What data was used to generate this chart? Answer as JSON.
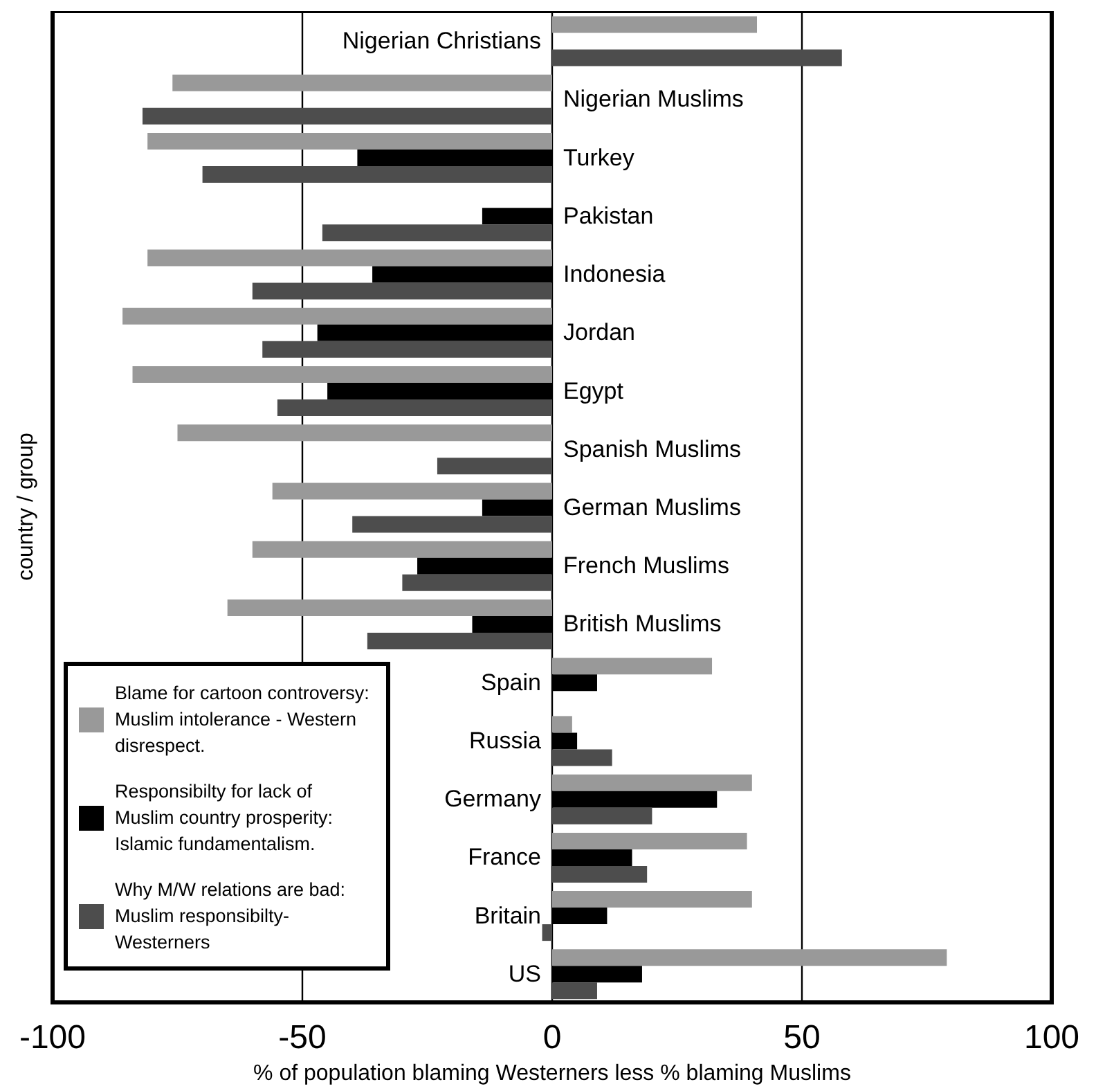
{
  "chart_data": {
    "type": "bar",
    "orientation": "horizontal",
    "ylabel": "country / group",
    "xlabel": "% of population blaming Westerners less % blaming Muslims",
    "categories": [
      "Nigerian Christians",
      "Nigerian Muslims",
      "Turkey",
      "Pakistan",
      "Indonesia",
      "Jordan",
      "Egypt",
      "Spanish Muslims",
      "German Muslims",
      "French Muslims",
      "British Muslims",
      "Spain",
      "Russia",
      "Germany",
      "France",
      "Britain",
      "US"
    ],
    "series": [
      {
        "name": "Blame for cartoon controversy: Muslim intolerance - Western disrespect.",
        "color": "#999999",
        "values": [
          41,
          -76,
          -81,
          null,
          -81,
          -86,
          -84,
          -75,
          -56,
          -60,
          -65,
          32,
          4,
          40,
          39,
          40,
          79
        ]
      },
      {
        "name": "Responsibilty for lack of Muslim country prosperity: Islamic fundamentalism.",
        "color": "#000000",
        "values": [
          null,
          null,
          -39,
          -14,
          -36,
          -47,
          -45,
          null,
          -14,
          -27,
          -16,
          9,
          5,
          33,
          16,
          11,
          18
        ]
      },
      {
        "name": "Why M/W relations are bad: Muslim responsibilty- Westerners",
        "color": "#4d4d4d",
        "values": [
          58,
          -82,
          -70,
          -46,
          -60,
          -58,
          -55,
          -23,
          -40,
          -30,
          -37,
          null,
          12,
          20,
          19,
          -2,
          9
        ]
      }
    ],
    "xlim": [
      -100,
      100
    ],
    "xticks": [
      -100,
      -50,
      0,
      50,
      100
    ],
    "grid": "x",
    "legend": "bottom left"
  }
}
